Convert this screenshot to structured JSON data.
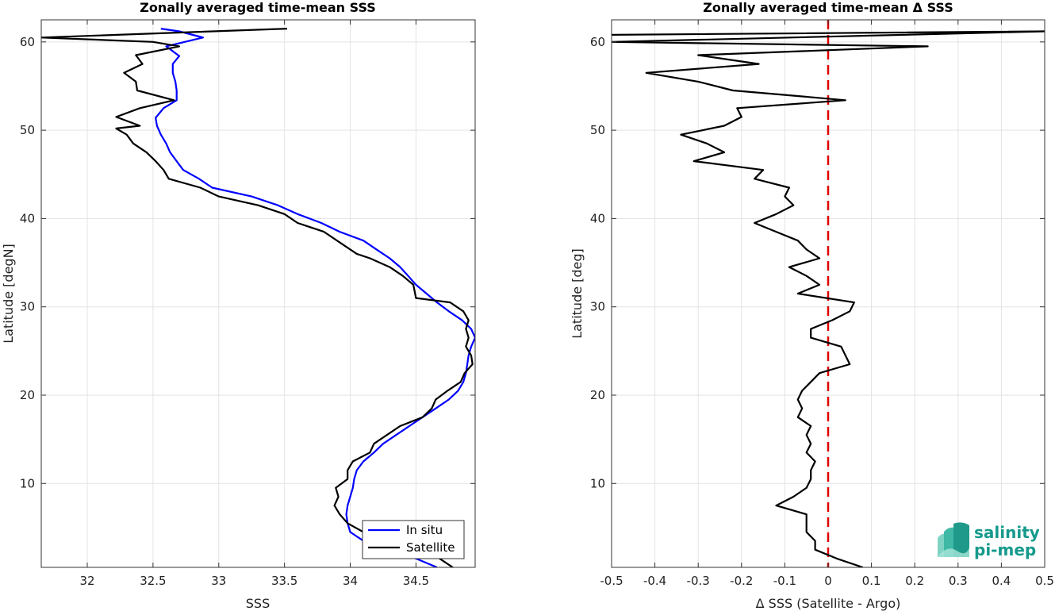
{
  "chart_data": [
    {
      "type": "line",
      "title": "Zonally averaged time-mean SSS",
      "xlabel": "SSS",
      "ylabel": "Latitude [degN]",
      "xlim": [
        31.65,
        34.95
      ],
      "ylim": [
        0.5,
        62.5
      ],
      "xticks": [
        "32",
        "32.5",
        "33",
        "33.5",
        "34",
        "34.5"
      ],
      "yticks": [
        "10",
        "20",
        "30",
        "40",
        "50",
        "60"
      ],
      "grid": true,
      "legend": "bottom-right",
      "series": [
        {
          "name": "In situ",
          "color": "#0000ff",
          "points": [
            [
              34.66,
              0.5
            ],
            [
              34.5,
              1.5
            ],
            [
              34.3,
              2.5
            ],
            [
              34.1,
              3.5
            ],
            [
              34.0,
              4.5
            ],
            [
              33.98,
              5.5
            ],
            [
              33.97,
              6.5
            ],
            [
              33.98,
              7.5
            ],
            [
              34.0,
              8.5
            ],
            [
              34.02,
              9.5
            ],
            [
              34.03,
              10.5
            ],
            [
              34.05,
              11.5
            ],
            [
              34.1,
              12.5
            ],
            [
              34.18,
              13.5
            ],
            [
              34.25,
              14.5
            ],
            [
              34.35,
              15.5
            ],
            [
              34.45,
              16.5
            ],
            [
              34.55,
              17.5
            ],
            [
              34.65,
              18.5
            ],
            [
              34.75,
              19.5
            ],
            [
              34.82,
              20.5
            ],
            [
              34.86,
              21.5
            ],
            [
              34.88,
              22.5
            ],
            [
              34.89,
              23.5
            ],
            [
              34.9,
              24.5
            ],
            [
              34.92,
              25.5
            ],
            [
              34.95,
              26.5
            ],
            [
              34.92,
              27.5
            ],
            [
              34.85,
              28.5
            ],
            [
              34.75,
              29.5
            ],
            [
              34.66,
              30.5
            ],
            [
              34.58,
              31.5
            ],
            [
              34.5,
              32.5
            ],
            [
              34.44,
              33.5
            ],
            [
              34.38,
              34.5
            ],
            [
              34.3,
              35.5
            ],
            [
              34.2,
              36.5
            ],
            [
              34.1,
              37.5
            ],
            [
              33.92,
              38.5
            ],
            [
              33.78,
              39.5
            ],
            [
              33.6,
              40.5
            ],
            [
              33.45,
              41.5
            ],
            [
              33.25,
              42.5
            ],
            [
              32.95,
              43.5
            ],
            [
              32.85,
              44.5
            ],
            [
              32.73,
              45.5
            ],
            [
              32.68,
              46.5
            ],
            [
              32.63,
              47.5
            ],
            [
              32.6,
              48.5
            ],
            [
              32.56,
              49.5
            ],
            [
              32.53,
              50.5
            ],
            [
              32.52,
              51.4
            ],
            [
              32.58,
              52.5
            ],
            [
              32.68,
              53.4
            ],
            [
              32.68,
              54.5
            ],
            [
              32.67,
              55.5
            ],
            [
              32.65,
              56.5
            ],
            [
              32.65,
              57.5
            ],
            [
              32.7,
              58.4
            ],
            [
              32.6,
              59.5
            ],
            [
              32.88,
              60.5
            ],
            [
              32.7,
              61.2
            ],
            [
              32.56,
              61.5
            ]
          ]
        },
        {
          "name": "Satellite",
          "color": "#000000",
          "points": [
            [
              34.78,
              0.5
            ],
            [
              34.68,
              1.5
            ],
            [
              34.52,
              2.5
            ],
            [
              34.35,
              3.5
            ],
            [
              34.1,
              4.5
            ],
            [
              33.98,
              5.5
            ],
            [
              33.92,
              6.5
            ],
            [
              33.88,
              7.5
            ],
            [
              33.91,
              8.5
            ],
            [
              33.89,
              9.5
            ],
            [
              33.98,
              10.5
            ],
            [
              33.98,
              11.5
            ],
            [
              34.02,
              12.5
            ],
            [
              34.15,
              13.5
            ],
            [
              34.18,
              14.5
            ],
            [
              34.28,
              15.5
            ],
            [
              34.38,
              16.5
            ],
            [
              34.55,
              17.5
            ],
            [
              34.62,
              18.5
            ],
            [
              34.65,
              19.5
            ],
            [
              34.74,
              20.5
            ],
            [
              34.84,
              21.5
            ],
            [
              34.87,
              22.5
            ],
            [
              34.93,
              23.5
            ],
            [
              34.92,
              24.5
            ],
            [
              34.88,
              25.5
            ],
            [
              34.9,
              26.5
            ],
            [
              34.88,
              27.5
            ],
            [
              34.9,
              28.5
            ],
            [
              34.86,
              29.5
            ],
            [
              34.76,
              30.5
            ],
            [
              34.5,
              31.0
            ],
            [
              34.48,
              32.5
            ],
            [
              34.4,
              33.5
            ],
            [
              34.3,
              34.5
            ],
            [
              34.15,
              35.5
            ],
            [
              34.05,
              36.0
            ],
            [
              33.95,
              37.0
            ],
            [
              33.8,
              38.5
            ],
            [
              33.6,
              39.5
            ],
            [
              33.5,
              40.5
            ],
            [
              33.3,
              41.5
            ],
            [
              33.0,
              42.5
            ],
            [
              32.86,
              43.5
            ],
            [
              32.62,
              44.5
            ],
            [
              32.58,
              45.5
            ],
            [
              32.52,
              46.5
            ],
            [
              32.45,
              47.5
            ],
            [
              32.35,
              48.5
            ],
            [
              32.3,
              49.5
            ],
            [
              32.22,
              50.2
            ],
            [
              32.4,
              50.5
            ],
            [
              32.22,
              51.5
            ],
            [
              32.4,
              52.5
            ],
            [
              32.66,
              53.4
            ],
            [
              32.38,
              54.5
            ],
            [
              32.37,
              55.5
            ],
            [
              32.28,
              56.5
            ],
            [
              32.42,
              57.5
            ],
            [
              32.37,
              58.5
            ],
            [
              32.7,
              59.5
            ],
            [
              32.5,
              60.0
            ],
            [
              31.65,
              60.5
            ],
            [
              33.52,
              61.5
            ]
          ]
        }
      ]
    },
    {
      "type": "line",
      "title": "Zonally averaged time-mean Δ SSS",
      "xlabel": "Δ SSS (Satellite - Argo)",
      "ylabel": "Latitude [deg]",
      "xlim": [
        -0.5,
        0.5
      ],
      "ylim": [
        0.5,
        62.5
      ],
      "xticks": [
        "-0.5",
        "-0.4",
        "-0.3",
        "-0.2",
        "-0.1",
        "0",
        "0.1",
        "0.2",
        "0.3",
        "0.4",
        "0.5"
      ],
      "yticks": [
        "10",
        "20",
        "30",
        "40",
        "50",
        "60"
      ],
      "grid": true,
      "reference_line": {
        "x": 0,
        "color": "#e00000",
        "style": "dashed"
      },
      "series": [
        {
          "color": "#000000",
          "points": [
            [
              0.08,
              0.5
            ],
            [
              0.02,
              1.5
            ],
            [
              -0.03,
              2.5
            ],
            [
              -0.03,
              3.5
            ],
            [
              -0.05,
              4.5
            ],
            [
              -0.05,
              5.5
            ],
            [
              -0.05,
              6.5
            ],
            [
              -0.12,
              7.5
            ],
            [
              -0.08,
              8.5
            ],
            [
              -0.05,
              9.5
            ],
            [
              -0.04,
              10.5
            ],
            [
              -0.04,
              11.5
            ],
            [
              -0.03,
              12.5
            ],
            [
              -0.05,
              13.5
            ],
            [
              -0.04,
              14.5
            ],
            [
              -0.05,
              15.5
            ],
            [
              -0.04,
              16.5
            ],
            [
              -0.07,
              17.5
            ],
            [
              -0.06,
              18.5
            ],
            [
              -0.07,
              19.5
            ],
            [
              -0.06,
              20.5
            ],
            [
              -0.04,
              21.5
            ],
            [
              -0.02,
              22.5
            ],
            [
              0.05,
              23.5
            ],
            [
              0.04,
              24.5
            ],
            [
              0.03,
              25.5
            ],
            [
              -0.04,
              26.5
            ],
            [
              -0.04,
              27.5
            ],
            [
              0.01,
              28.5
            ],
            [
              0.05,
              29.5
            ],
            [
              0.06,
              30.5
            ],
            [
              -0.07,
              31.5
            ],
            [
              -0.02,
              32.5
            ],
            [
              -0.05,
              33.5
            ],
            [
              -0.09,
              34.5
            ],
            [
              -0.02,
              35.5
            ],
            [
              -0.05,
              36.5
            ],
            [
              -0.07,
              37.5
            ],
            [
              -0.12,
              38.5
            ],
            [
              -0.17,
              39.5
            ],
            [
              -0.12,
              40.5
            ],
            [
              -0.08,
              41.5
            ],
            [
              -0.1,
              42.5
            ],
            [
              -0.09,
              43.5
            ],
            [
              -0.17,
              44.5
            ],
            [
              -0.15,
              45.5
            ],
            [
              -0.31,
              46.5
            ],
            [
              -0.24,
              47.5
            ],
            [
              -0.28,
              48.5
            ],
            [
              -0.34,
              49.5
            ],
            [
              -0.24,
              50.5
            ],
            [
              -0.2,
              51.5
            ],
            [
              -0.21,
              52.5
            ],
            [
              0.04,
              53.4
            ],
            [
              -0.1,
              54.0
            ],
            [
              -0.22,
              54.5
            ],
            [
              -0.3,
              55.5
            ],
            [
              -0.42,
              56.5
            ],
            [
              -0.16,
              57.5
            ],
            [
              -0.3,
              58.5
            ],
            [
              0.23,
              59.5
            ],
            [
              -0.5,
              60.0
            ],
            [
              0.5,
              61.2
            ],
            [
              -0.5,
              60.8
            ]
          ]
        }
      ]
    }
  ],
  "legend": {
    "items": [
      {
        "label": "In situ",
        "color": "#0000ff"
      },
      {
        "label": "Satellite",
        "color": "#000000"
      }
    ]
  },
  "logo": {
    "line1": "salinity",
    "line2": "pi-mep"
  }
}
